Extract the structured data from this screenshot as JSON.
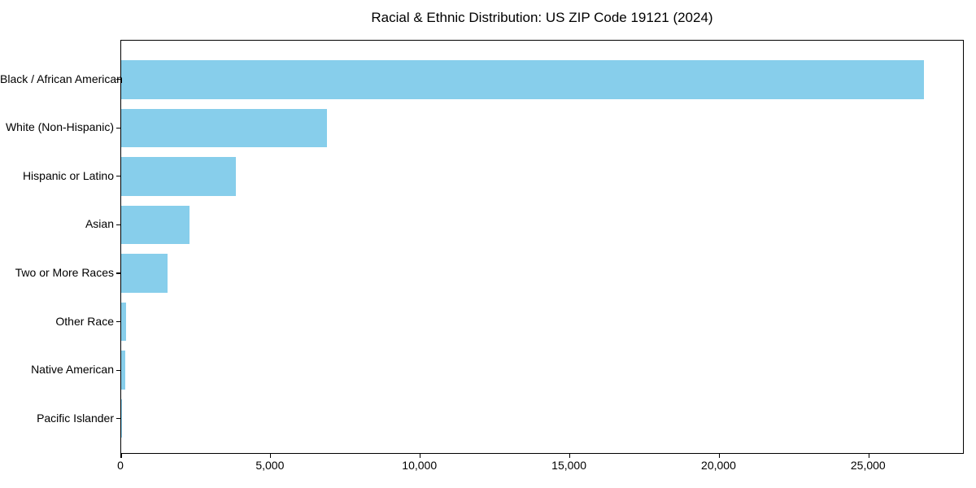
{
  "chart_data": {
    "type": "bar",
    "orientation": "horizontal",
    "title": "Racial & Ethnic Distribution: US ZIP Code 19121 (2024)",
    "categories": [
      "Black / African American",
      "White (Non-Hispanic)",
      "Hispanic or Latino",
      "Asian",
      "Two or More Races",
      "Other Race",
      "Native American",
      "Pacific Islander"
    ],
    "values": [
      26850,
      6870,
      3840,
      2290,
      1550,
      175,
      140,
      15
    ],
    "xlabel": "",
    "ylabel": "",
    "xlim": [
      0,
      28200
    ],
    "x_ticks": [
      0,
      5000,
      10000,
      15000,
      20000,
      25000
    ],
    "x_tick_labels": [
      "0",
      "5,000",
      "10,000",
      "15,000",
      "20,000",
      "25,000"
    ],
    "grid": false,
    "legend": null,
    "colors": {
      "bar_fill": "#87CEEB",
      "axis": "#000000",
      "text": "#000000",
      "background": "#FFFFFF"
    }
  }
}
